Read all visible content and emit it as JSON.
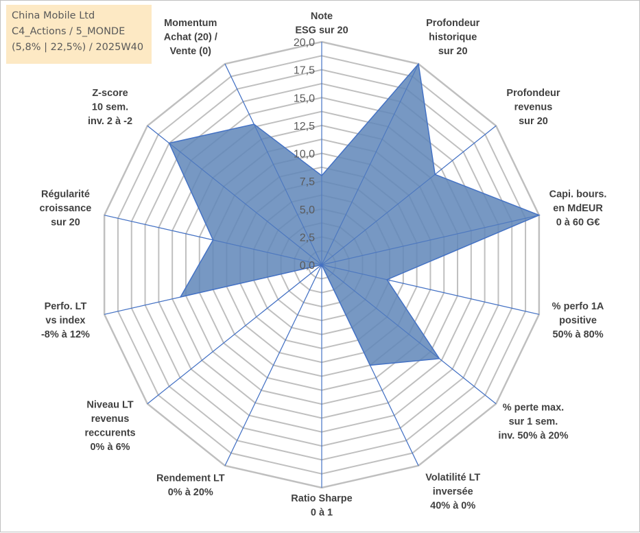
{
  "info": {
    "line1": "China Mobile Ltd",
    "line2": "C4_Actions / 5_MONDE",
    "line3": "(5,8% | 22,5%) / 2025W40"
  },
  "chart_data": {
    "type": "radar",
    "title": "",
    "rmin": 0,
    "rmax": 20,
    "tick_step": 2.5,
    "ticks": [
      "0,0",
      "2,5",
      "5,0",
      "7,5",
      "10,0",
      "12,5",
      "15,0",
      "17,5",
      "20,0"
    ],
    "gridlines": true,
    "colors": {
      "fill": "#5f86b8",
      "line": "#4472c4",
      "grid": "#bfbfbf",
      "spoke": "#4472c4"
    },
    "axes": [
      {
        "lines": [
          "Note",
          "ESG sur 20"
        ],
        "value": 8.0
      },
      {
        "lines": [
          "Profondeur",
          "historique",
          "sur 20"
        ],
        "value": 20.0
      },
      {
        "lines": [
          "Profondeur",
          "revenus",
          "sur 20"
        ],
        "value": 13.0
      },
      {
        "lines": [
          "Capi. bours.",
          "en MdEUR",
          "0 à 60 G€"
        ],
        "value": 20.0
      },
      {
        "lines": [
          "% perfo 1A",
          "positive",
          "50% à 80%"
        ],
        "value": 6.0
      },
      {
        "lines": [
          "% perte max.",
          "sur 1 sem.",
          "inv. 50% à 20%"
        ],
        "value": 13.5
      },
      {
        "lines": [
          "Volatilité LT",
          "inversée",
          "40% à 0%"
        ],
        "value": 10.0
      },
      {
        "lines": [
          "Ratio Sharpe",
          "0 à 1"
        ],
        "value": 0.0
      },
      {
        "lines": [
          "Rendement LT",
          "0% à 20%"
        ],
        "value": 0.0
      },
      {
        "lines": [
          "Niveau LT",
          "revenus",
          "reccurents",
          "0% à 6%"
        ],
        "value": 0.0
      },
      {
        "lines": [
          "Perfo. LT",
          "vs index",
          "-8% à 12%"
        ],
        "value": 13.0
      },
      {
        "lines": [
          "Régularité",
          "croissance",
          "sur 20"
        ],
        "value": 10.0
      },
      {
        "lines": [
          "Z-score",
          "10 sem.",
          "inv. 2 à -2"
        ],
        "value": 17.5
      },
      {
        "lines": [
          "Momentum",
          "Achat (20) /",
          "Vente (0)"
        ],
        "value": 14.0
      }
    ]
  }
}
